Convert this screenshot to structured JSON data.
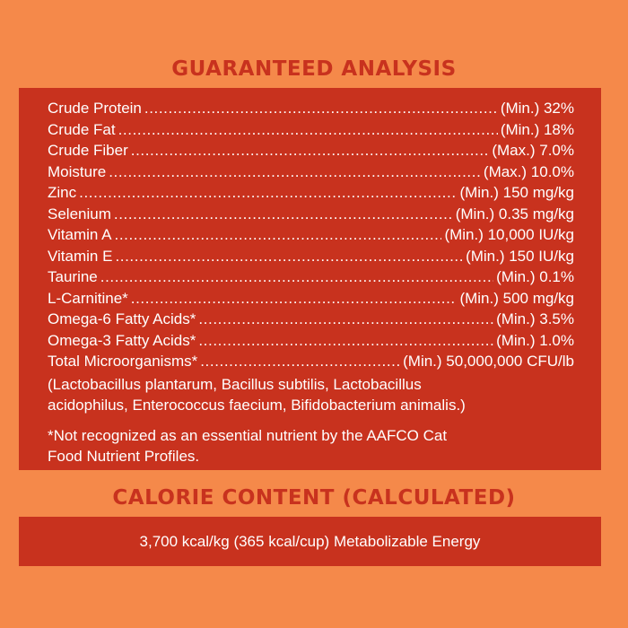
{
  "guaranteed_analysis": {
    "heading": "GUARANTEED ANALYSIS",
    "nutrients": [
      {
        "name": "Crude Protein",
        "value": "(Min.) 32%"
      },
      {
        "name": "Crude Fat",
        "value": "(Min.) 18%"
      },
      {
        "name": "Crude Fiber",
        "value": "(Max.) 7.0%"
      },
      {
        "name": "Moisture",
        "value": "(Max.) 10.0%"
      },
      {
        "name": "Zinc",
        "value": "(Min.) 150 mg/kg"
      },
      {
        "name": "Selenium",
        "value": "(Min.) 0.35 mg/kg"
      },
      {
        "name": "Vitamin A",
        "value": "(Min.) 10,000 IU/kg"
      },
      {
        "name": "Vitamin E",
        "value": "(Min.) 150 IU/kg"
      },
      {
        "name": "Taurine",
        "value": "(Min.) 0.1%"
      },
      {
        "name": "L-Carnitine*",
        "value": "(Min.) 500 mg/kg"
      },
      {
        "name": "Omega-6 Fatty Acids*",
        "value": "(Min.) 3.5%"
      },
      {
        "name": "Omega-3 Fatty Acids*",
        "value": "(Min.) 1.0%"
      },
      {
        "name": "Total Microorganisms*",
        "value": "(Min.) 50,000,000 CFU/lb"
      }
    ],
    "microorganisms_line1": "(Lactobacillus plantarum, Bacillus subtilis, Lactobacillus",
    "microorganisms_line2": "acidophilus, Enterococcus faecium, Bifidobacterium animalis.)",
    "footnote": "*Not recognized as an essential nutrient by the AAFCO Cat Food Nutrient Profiles."
  },
  "calorie_content": {
    "heading": "CALORIE CONTENT (CALCULATED)",
    "text": "3,700 kcal/kg (365 kcal/cup) Metabolizable Energy"
  },
  "colors": {
    "background": "#f5894a",
    "panel": "#c8321e",
    "heading": "#c8321e",
    "text": "#ffffff"
  }
}
